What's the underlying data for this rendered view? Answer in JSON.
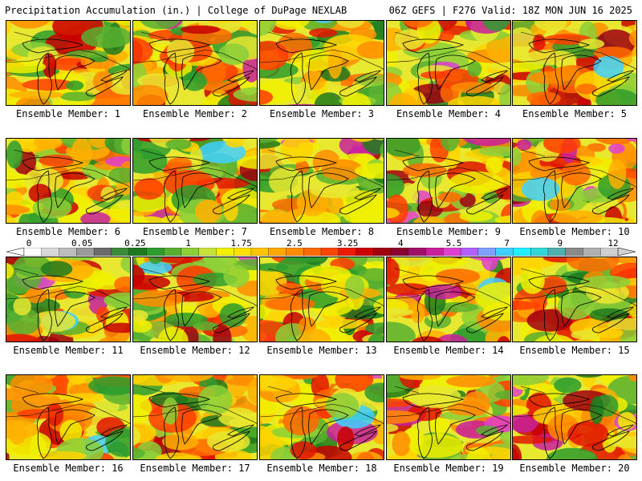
{
  "header": {
    "title_left": "Precipitation Accumulation (in.) | College of DuPage NEXLAB",
    "title_right": "06Z GEFS | F276 Valid: 18Z MON JUN 16 2025"
  },
  "legend": {
    "labels": [
      "0",
      "0.05",
      "0.25",
      "1",
      "1.75",
      "2.5",
      "3.25",
      "4",
      "5.5",
      "7",
      "9",
      "12"
    ],
    "colors": [
      "#ffffff",
      "#d9d9d9",
      "#bdbdbd",
      "#9a9a9a",
      "#6c6c6c",
      "#3a8a3a",
      "#1e7a1e",
      "#2e9c2e",
      "#58b030",
      "#8ccf38",
      "#c9e23a",
      "#f0f000",
      "#ffe000",
      "#ffc400",
      "#ffa800",
      "#ff8c00",
      "#ff6a00",
      "#ff4400",
      "#ee1a00",
      "#cc0000",
      "#a00010",
      "#8a0030",
      "#a0106a",
      "#c8209c",
      "#e040d0",
      "#b060ff",
      "#7fa0ff",
      "#40d0ff",
      "#20f0ff",
      "#30d8d8",
      "#50b0b0",
      "#8a8a8a",
      "#b0b0b0",
      "#d0d0d0"
    ]
  },
  "members": [
    {
      "label": "Ensemble Member: 1"
    },
    {
      "label": "Ensemble Member: 2"
    },
    {
      "label": "Ensemble Member: 3"
    },
    {
      "label": "Ensemble Member: 4"
    },
    {
      "label": "Ensemble Member: 5"
    },
    {
      "label": "Ensemble Member: 6"
    },
    {
      "label": "Ensemble Member: 7"
    },
    {
      "label": "Ensemble Member: 8"
    },
    {
      "label": "Ensemble Member: 9"
    },
    {
      "label": "Ensemble Member: 10"
    },
    {
      "label": "Ensemble Member: 11"
    },
    {
      "label": "Ensemble Member: 12"
    },
    {
      "label": "Ensemble Member: 13"
    },
    {
      "label": "Ensemble Member: 14"
    },
    {
      "label": "Ensemble Member: 15"
    },
    {
      "label": "Ensemble Member: 16"
    },
    {
      "label": "Ensemble Member: 17"
    },
    {
      "label": "Ensemble Member: 18"
    },
    {
      "label": "Ensemble Member: 19"
    },
    {
      "label": "Ensemble Member: 20"
    }
  ]
}
